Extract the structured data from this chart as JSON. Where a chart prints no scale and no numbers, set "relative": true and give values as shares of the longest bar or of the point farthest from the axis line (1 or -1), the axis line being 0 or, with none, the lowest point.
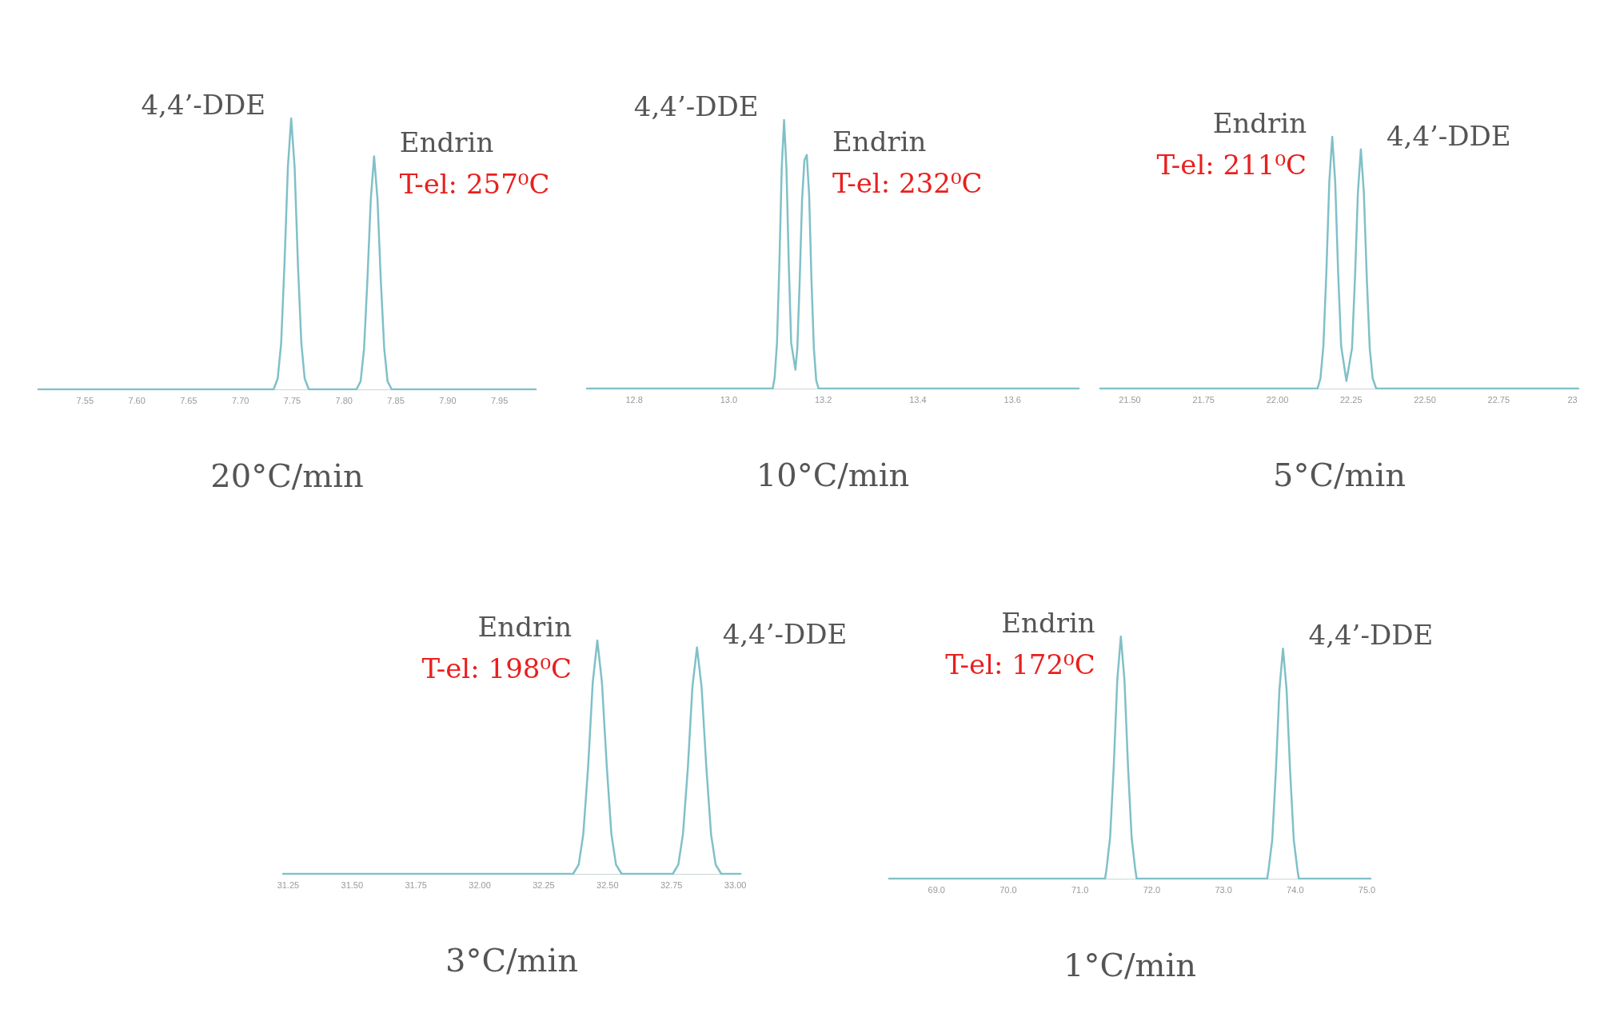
{
  "chart_data": [
    {
      "type": "line",
      "xlabel": "20°C/min",
      "color": "#80c0c8",
      "relative": true,
      "tick_labels": "x",
      "marker": "none",
      "annotations": [
        {
          "text": "4,4’-DDE",
          "x": 7.749,
          "y": 1
        },
        {
          "text": "Endrin",
          "x": 7.829,
          "y": 0.86
        },
        {
          "text": "T-el: 257⁰C",
          "x": 7.829,
          "y": 0.86
        }
      ],
      "xlim": [
        7.505,
        7.985
      ],
      "xticks": [
        {
          "value": 7.55,
          "label": "7.55"
        },
        {
          "value": 7.6,
          "label": "7.60"
        },
        {
          "value": 7.65,
          "label": "7.65"
        },
        {
          "value": 7.7,
          "label": "7.70"
        },
        {
          "value": 7.75,
          "label": "7.75"
        },
        {
          "value": 7.8,
          "label": "7.80"
        },
        {
          "value": 7.85,
          "label": "7.85"
        },
        {
          "value": 7.9,
          "label": "7.90"
        },
        {
          "value": 7.95,
          "label": "7.95"
        }
      ],
      "x": [
        7.505,
        7.732,
        7.736,
        7.7393,
        7.7425,
        7.7458,
        7.749,
        7.7523,
        7.7555,
        7.7588,
        7.762,
        7.766,
        7.812,
        7.816,
        7.8193,
        7.8225,
        7.8258,
        7.829,
        7.8323,
        7.8355,
        7.8388,
        7.842,
        7.846,
        7.985
      ],
      "values": [
        0,
        0,
        0.04,
        0.17,
        0.46,
        0.82,
        1,
        0.82,
        0.46,
        0.17,
        0.04,
        0,
        0,
        0.03,
        0.15,
        0.4,
        0.7,
        0.86,
        0.7,
        0.4,
        0.15,
        0.03,
        0,
        0
      ]
    },
    {
      "type": "line",
      "xlabel": "10°C/min",
      "color": "#80c0c8",
      "relative": true,
      "tick_labels": "x",
      "marker": "none",
      "annotations": [
        {
          "text": "4,4’-DDE",
          "x": 13.117,
          "y": 1
        },
        {
          "text": "Endrin",
          "x": 13.165,
          "y": 0.87
        },
        {
          "text": "T-el: 232⁰C",
          "x": 13.165,
          "y": 0.87
        }
      ],
      "xlim": [
        12.7,
        13.74
      ],
      "xticks": [
        {
          "value": 12.8,
          "label": "12.8"
        },
        {
          "value": 13,
          "label": "13.0"
        },
        {
          "value": 13.2,
          "label": "13.2"
        },
        {
          "value": 13.4,
          "label": "13.4"
        },
        {
          "value": 13.6,
          "label": "13.6"
        }
      ],
      "x": [
        12.7,
        13.093,
        13.097,
        13.102,
        13.107,
        13.112,
        13.117,
        13.122,
        13.127,
        13.132,
        13.141,
        13.145,
        13.15,
        13.155,
        13.16,
        13.165,
        13.17,
        13.175,
        13.18,
        13.185,
        13.19,
        13.74
      ],
      "values": [
        0,
        0,
        0.04,
        0.17,
        0.46,
        0.82,
        1,
        0.82,
        0.46,
        0.17,
        0.07,
        0.15,
        0.4,
        0.7,
        0.85,
        0.87,
        0.72,
        0.4,
        0.15,
        0.03,
        0,
        0
      ]
    },
    {
      "type": "line",
      "xlabel": "5°C/min",
      "color": "#80c0c8",
      "relative": true,
      "tick_labels": "x",
      "marker": "none",
      "annotations": [
        {
          "text": "Endrin",
          "x": 22.186,
          "y": 1
        },
        {
          "text": "T-el: 211⁰C",
          "x": 22.186,
          "y": 1
        },
        {
          "text": "4,4’-DDE",
          "x": 22.283,
          "y": 0.95
        }
      ],
      "xlim": [
        21.4,
        23.02
      ],
      "xticks": [
        {
          "value": 21.5,
          "label": "21.50"
        },
        {
          "value": 21.75,
          "label": "21.75"
        },
        {
          "value": 22,
          "label": "22.00"
        },
        {
          "value": 22.25,
          "label": "22.25"
        },
        {
          "value": 22.5,
          "label": "22.50"
        },
        {
          "value": 22.75,
          "label": "22.75"
        },
        {
          "value": 23,
          "label": "23"
        }
      ],
      "x": [
        21.4,
        22.136,
        22.146,
        22.156,
        22.166,
        22.176,
        22.186,
        22.196,
        22.206,
        22.216,
        22.234,
        22.253,
        22.263,
        22.273,
        22.283,
        22.293,
        22.303,
        22.313,
        22.323,
        22.335,
        23.02
      ],
      "values": [
        0,
        0,
        0.04,
        0.17,
        0.46,
        0.82,
        1,
        0.82,
        0.46,
        0.17,
        0.03,
        0.16,
        0.44,
        0.78,
        0.95,
        0.78,
        0.44,
        0.16,
        0.04,
        0,
        0
      ]
    },
    {
      "type": "line",
      "xlabel": "3°C/min",
      "color": "#80c0c8",
      "relative": true,
      "tick_labels": "x",
      "marker": "none",
      "annotations": [
        {
          "text": "Endrin",
          "x": 32.46,
          "y": 1
        },
        {
          "text": "T-el: 198⁰C",
          "x": 32.46,
          "y": 1
        },
        {
          "text": "4,4’-DDE",
          "x": 32.85,
          "y": 0.97
        }
      ],
      "xlim": [
        31.23,
        33.02
      ],
      "xticks": [
        {
          "value": 31.25,
          "label": "31.25"
        },
        {
          "value": 31.5,
          "label": "31.50"
        },
        {
          "value": 31.75,
          "label": "31.75"
        },
        {
          "value": 32,
          "label": "32.00"
        },
        {
          "value": 32.25,
          "label": "32.25"
        },
        {
          "value": 32.5,
          "label": "32.50"
        },
        {
          "value": 32.75,
          "label": "32.75"
        },
        {
          "value": 33,
          "label": "33.00"
        }
      ],
      "x": [
        31.23,
        32.365,
        32.387,
        32.405,
        32.424,
        32.442,
        32.46,
        32.478,
        32.497,
        32.515,
        32.533,
        32.555,
        32.755,
        32.777,
        32.795,
        32.814,
        32.832,
        32.85,
        32.868,
        32.887,
        32.905,
        32.923,
        32.945,
        33.02
      ],
      "values": [
        0,
        0,
        0.04,
        0.17,
        0.46,
        0.82,
        1,
        0.82,
        0.46,
        0.17,
        0.04,
        0,
        0,
        0.04,
        0.17,
        0.45,
        0.8,
        0.97,
        0.8,
        0.45,
        0.17,
        0.04,
        0,
        0
      ]
    },
    {
      "type": "line",
      "xlabel": "1°C/min",
      "color": "#80c0c8",
      "relative": true,
      "tick_labels": "x",
      "marker": "none",
      "annotations": [
        {
          "text": "Endrin",
          "x": 71.57,
          "y": 1
        },
        {
          "text": "T-el: 172⁰C",
          "x": 71.57,
          "y": 1
        },
        {
          "text": "4,4’-DDE",
          "x": 73.83,
          "y": 0.95
        }
      ],
      "xlim": [
        68.34,
        75.05
      ],
      "xticks": [
        {
          "value": 69,
          "label": "69.0"
        },
        {
          "value": 70,
          "label": "70.0"
        },
        {
          "value": 71,
          "label": "71.0"
        },
        {
          "value": 72,
          "label": "72.0"
        },
        {
          "value": 73,
          "label": "73.0"
        },
        {
          "value": 74,
          "label": "74.0"
        },
        {
          "value": 75,
          "label": "75.0"
        }
      ],
      "x": [
        68.34,
        71.35,
        71.37,
        71.42,
        71.47,
        71.52,
        71.57,
        71.62,
        71.67,
        71.72,
        71.77,
        71.79,
        73.61,
        73.63,
        73.68,
        73.73,
        73.78,
        73.83,
        73.88,
        73.93,
        73.98,
        74.03,
        74.05,
        75.05
      ],
      "values": [
        0,
        0,
        0.04,
        0.17,
        0.46,
        0.82,
        1,
        0.82,
        0.46,
        0.17,
        0.04,
        0,
        0,
        0.04,
        0.16,
        0.44,
        0.78,
        0.95,
        0.78,
        0.44,
        0.16,
        0.04,
        0,
        0
      ]
    }
  ]
}
